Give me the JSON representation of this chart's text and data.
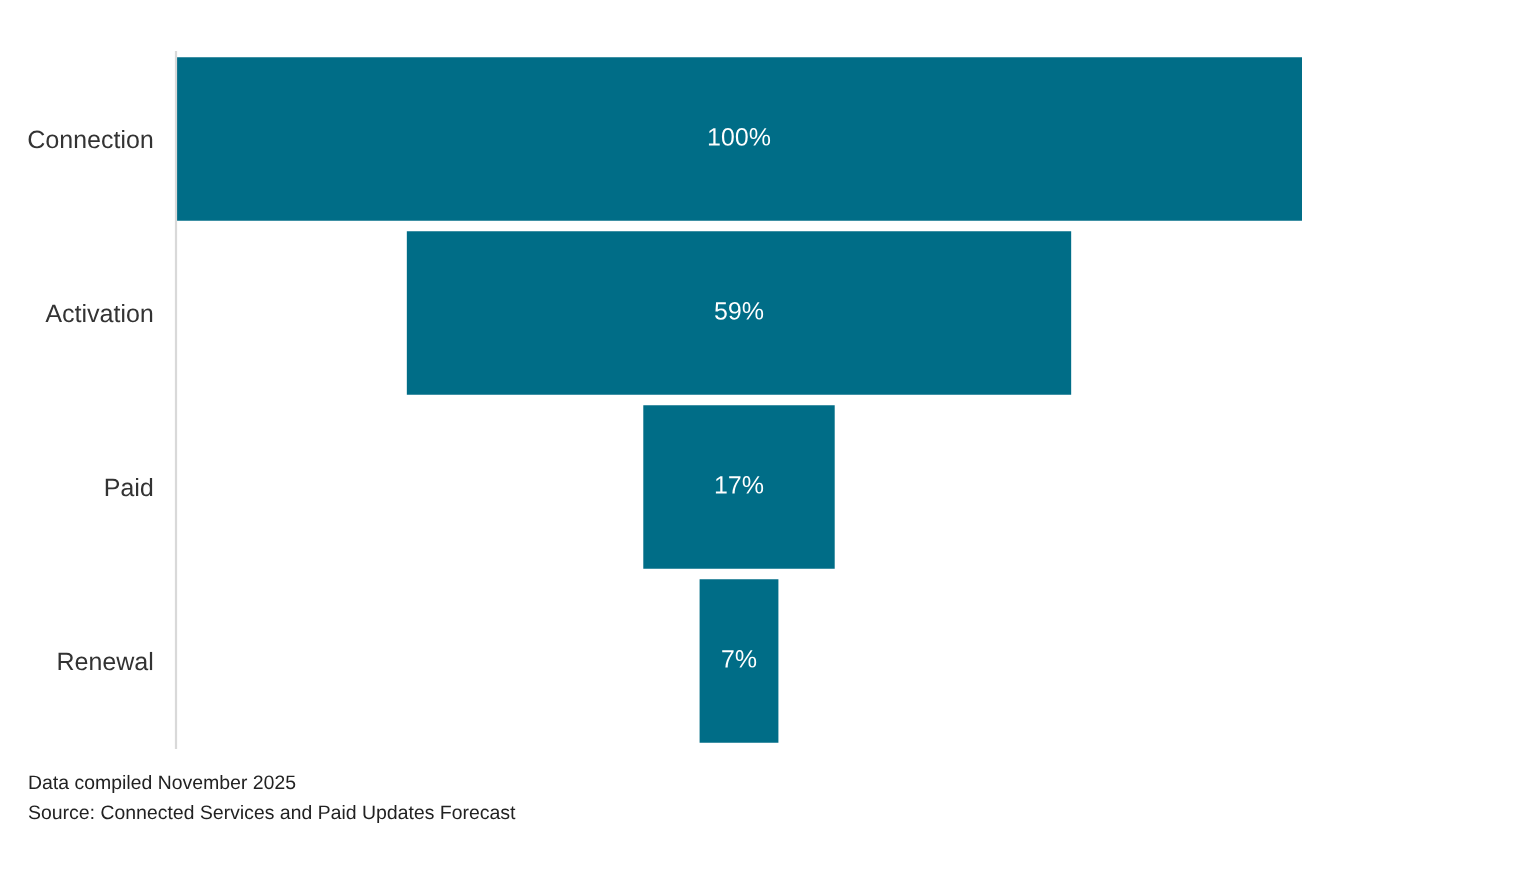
{
  "chart_data": {
    "type": "other",
    "categories": [
      "Connection",
      "Activation",
      "Paid",
      "Renewal"
    ],
    "values": [
      100,
      59,
      17,
      7
    ],
    "value_labels": [
      "100%",
      "59%",
      "17%",
      "7%"
    ],
    "color": "#006d87",
    "annotations": [
      "Data compiled November 2025",
      "Source: Connected Services and Paid Updates Forecast"
    ]
  }
}
